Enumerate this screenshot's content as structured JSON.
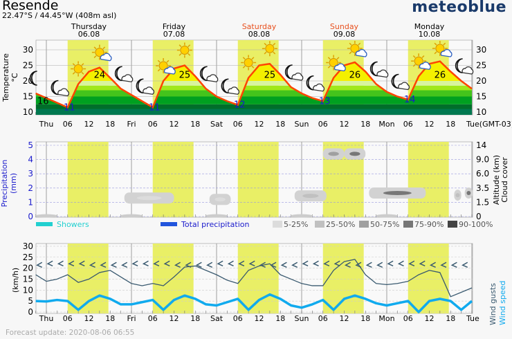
{
  "header": {
    "location": "Resende",
    "coordinates": "22.47°S / 44.45°W (408m asl)",
    "brand": "meteoblue"
  },
  "footer": {
    "update": "Forecast update: 2020-08-06 06:55"
  },
  "colors": {
    "daylight": "#e9ef66",
    "temp_line": "#ff4400",
    "weekend": "#e8501e",
    "precip_axis": "#1a1acc",
    "wind_gust": "#3a5a70",
    "wind_speed": "#10aaee",
    "showers": "#22d0d0",
    "total_precip": "#2255dd"
  },
  "days": [
    {
      "name": "Thursday",
      "date": "06.08",
      "short": "Thu",
      "weekend": false
    },
    {
      "name": "Friday",
      "date": "07.08",
      "short": "Fri",
      "weekend": false
    },
    {
      "name": "Saturday",
      "date": "08.08",
      "short": "Sat",
      "weekend": true
    },
    {
      "name": "Sunday",
      "date": "09.08",
      "short": "Sun",
      "weekend": true
    },
    {
      "name": "Monday",
      "date": "10.08",
      "short": "Mon",
      "weekend": false
    }
  ],
  "x_axis": {
    "hour_ticks": [
      "06",
      "12",
      "18"
    ],
    "end_label": "Tue",
    "timezone": "(GMT-03)"
  },
  "chart_data": [
    {
      "type": "area",
      "title": "",
      "ylabel": "Temperature\n°C",
      "ylim": [
        9.5,
        33
      ],
      "yticks": [
        10,
        15,
        20,
        25,
        30
      ],
      "x_unit": "hours from Thu 00:00, 3-hourly from Wed 21:00",
      "x": [
        -3,
        0,
        3,
        6,
        9,
        12,
        15,
        18,
        21,
        24,
        27,
        30,
        33,
        36,
        39,
        42,
        45,
        48,
        51,
        54,
        57,
        60,
        63,
        66,
        69,
        72,
        75,
        78,
        81,
        84,
        87,
        90,
        93,
        96,
        99,
        102,
        105,
        108,
        111,
        114,
        117,
        120
      ],
      "values": [
        16,
        14.5,
        13,
        11.5,
        19,
        23,
        24.3,
        21,
        17.5,
        15.5,
        13.5,
        11.5,
        20,
        24,
        25,
        21.5,
        17.5,
        15,
        13.5,
        12.3,
        21,
        25,
        25.5,
        22,
        18,
        16,
        14.5,
        13.5,
        21,
        25,
        26,
        23,
        19,
        16.5,
        15,
        14,
        21.5,
        25.5,
        26.3,
        23,
        20,
        17.5
      ],
      "labels": {
        "start": "16",
        "min": [
          "11",
          "11",
          "12",
          "13",
          "14"
        ],
        "max": [
          "24",
          "25",
          "25",
          "26",
          "26"
        ]
      },
      "icons": [
        "moon",
        "moon-cloud",
        "sun",
        "sun-cloud",
        "moon-cloud",
        "moon-cloud",
        "sun-cloud",
        "sun",
        "moon-cloud",
        "moon-cloud",
        "sun",
        "sun",
        "moon-cloud",
        "moon-cloud",
        "sun-cloud",
        "sun-cloud",
        "moon-cloud",
        "moon-cloud",
        "sun-cloud",
        "sun-cloud",
        "moon-cloud"
      ]
    },
    {
      "type": "heatmap",
      "title": "",
      "ylabel": "Precipitation\n(mm)",
      "ylim": [
        0,
        5
      ],
      "yticks": [
        0,
        1,
        2,
        3,
        4,
        5
      ],
      "y2label": "Altitude (km)\nCloud cover",
      "y2ticks": [
        "0",
        "1.5",
        "3.5",
        "6.0",
        "9.0",
        "14"
      ],
      "legend": [
        "Showers",
        "Total precipitation",
        "5-25%",
        "25-50%",
        "50-75%",
        "75-90%",
        "90-100%"
      ],
      "cloud_cover_areas": [
        {
          "start": 22,
          "end": 36,
          "alt_level": 1.3,
          "cover": "5-25%"
        },
        {
          "start": 46,
          "end": 52,
          "alt_level": 1.2,
          "cover": "5-25%"
        },
        {
          "start": 70,
          "end": 79,
          "alt_level": 1.45,
          "cover": "25-50%"
        },
        {
          "start": 78,
          "end": 84,
          "alt_level": 4.4,
          "cover": "50-75%"
        },
        {
          "start": 84,
          "end": 90,
          "alt_level": 4.4,
          "cover": "75-90%"
        },
        {
          "start": 91,
          "end": 107,
          "alt_level": 1.65,
          "cover": "75-90%"
        },
        {
          "start": 115,
          "end": 117,
          "alt_level": 1.5,
          "cover": "25-50%"
        },
        {
          "start": 118,
          "end": 137,
          "alt_level": 1.65,
          "cover": "75-90%"
        }
      ],
      "precipitation": []
    },
    {
      "type": "line",
      "title": "",
      "ylabel": "(km/h)",
      "ylim": [
        0,
        30
      ],
      "yticks": [
        0,
        5,
        10,
        15,
        20,
        25,
        30
      ],
      "y2label": "Wind gusts\nWind speed",
      "x": [
        -3,
        0,
        3,
        6,
        9,
        12,
        15,
        18,
        21,
        24,
        27,
        30,
        33,
        36,
        39,
        42,
        45,
        48,
        51,
        54,
        57,
        60,
        63,
        66,
        69,
        72,
        75,
        78,
        81,
        84,
        87,
        90,
        93,
        96,
        99,
        102,
        105,
        108,
        111,
        114,
        117,
        120
      ],
      "series": [
        {
          "name": "Wind gusts",
          "values": [
            17,
            14,
            15,
            17,
            13.5,
            15,
            18,
            19,
            16,
            13,
            12,
            13,
            12,
            16,
            20.5,
            21,
            19,
            17,
            14.5,
            13,
            19,
            21,
            22,
            17,
            15,
            13,
            12,
            12,
            19,
            23,
            24,
            17,
            13,
            12.5,
            13,
            14,
            17,
            19,
            18,
            7,
            9,
            11
          ]
        },
        {
          "name": "Wind speed",
          "values": [
            5,
            4.8,
            5.5,
            5,
            1,
            5,
            7.5,
            6,
            3.5,
            3.5,
            4.5,
            5.5,
            1,
            5.5,
            7.5,
            6,
            3.5,
            3,
            4.5,
            6,
            1,
            5.5,
            8,
            6,
            3,
            2,
            3.5,
            5.5,
            1,
            6,
            7.5,
            6,
            4,
            3,
            4,
            5,
            0,
            5,
            6,
            5,
            1,
            5
          ]
        }
      ],
      "wind_direction": "E to ESE (arrows pointing west)"
    }
  ]
}
